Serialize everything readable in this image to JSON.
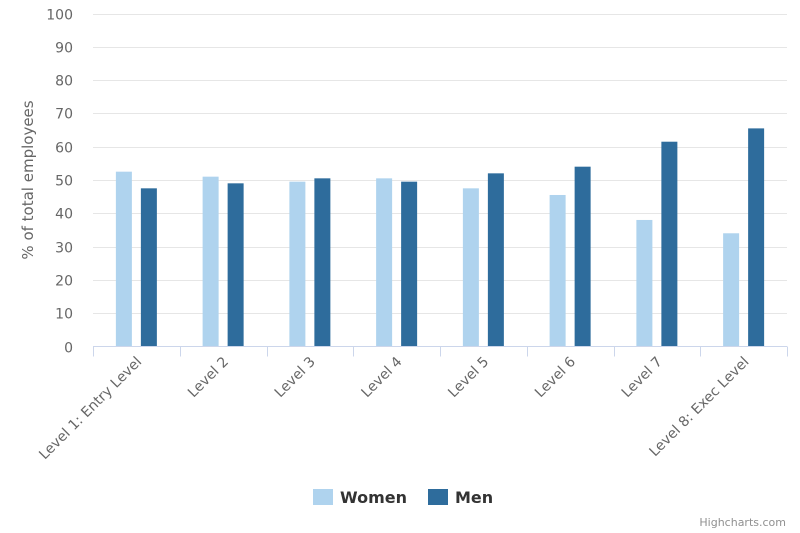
{
  "chart_data": {
    "type": "bar",
    "categories": [
      "Level 1: Entry Level",
      "Level 2",
      "Level 3",
      "Level 4",
      "Level 5",
      "Level 6",
      "Level 7",
      "Level 8: Exec Level"
    ],
    "series": [
      {
        "name": "Women",
        "color": "#afd3ee",
        "values": [
          52.5,
          51,
          49.5,
          50.5,
          47.5,
          45.5,
          38,
          34
        ]
      },
      {
        "name": "Men",
        "color": "#2e6c9c",
        "values": [
          47.5,
          49,
          50.5,
          49.5,
          52,
          54,
          61.5,
          65.5
        ]
      }
    ],
    "ylabel": "% of total employees",
    "ylim": [
      0,
      100
    ],
    "yticks": [
      0,
      10,
      20,
      30,
      40,
      50,
      60,
      70,
      80,
      90,
      100
    ],
    "grid": true,
    "legend": "bottom-center"
  },
  "credit": "Highcharts.com"
}
